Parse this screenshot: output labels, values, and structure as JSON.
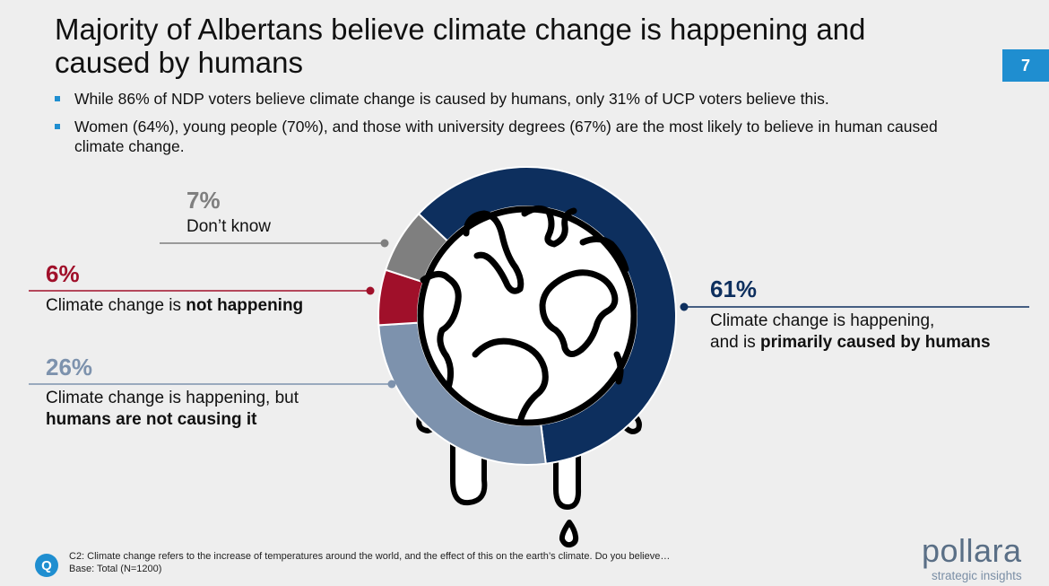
{
  "header": {
    "title": "Majority of Albertans believe climate change is happening and caused by humans",
    "page_number": "7"
  },
  "bullets": [
    "While 86% of NDP voters believe climate change is caused by humans, only 31% of UCP voters believe this.",
    "Women (64%), young people (70%), and those with university degrees (67%) are the most likely to believe in human caused climate change."
  ],
  "chart_data": {
    "type": "pie",
    "subtype": "donut",
    "categories": [
      "Climate change is happening, and is primarily caused by humans",
      "Climate change is happening, but humans are not causing it",
      "Climate change is not happening",
      "Don't know"
    ],
    "values": [
      61,
      26,
      6,
      7
    ],
    "unit": "%",
    "colors": [
      "#0d2f5e",
      "#7d92ad",
      "#a0102a",
      "#7f7f7f"
    ]
  },
  "labels": {
    "humans": {
      "pct": "61%",
      "line1": "Climate change is happening,",
      "line2_prefix": "and is ",
      "line2_bold": "primarily caused by humans"
    },
    "not_humans": {
      "pct": "26%",
      "line1": "Climate change is happening, but",
      "line2_bold": "humans are not causing it"
    },
    "not_happening": {
      "pct": "6%",
      "prefix": "Climate change is ",
      "bold": "not happening"
    },
    "dont_know": {
      "pct": "7%",
      "text": "Don’t know"
    }
  },
  "footer": {
    "question_icon": "Q",
    "question": "C2: Climate change refers to the increase of temperatures around the world, and the effect of this on the earth’s climate. Do you believe…",
    "base": "Base: Total (N=1200)"
  },
  "logo": {
    "name": "pollara",
    "tagline": "strategic insights"
  },
  "colors": {
    "accent": "#1f8ed0",
    "humans": "#0d2f5e",
    "not_humans": "#7d92ad",
    "not_happening": "#a0102a",
    "dont_know": "#7f7f7f"
  },
  "icons": [
    "melting-globe-icon",
    "question-icon"
  ]
}
